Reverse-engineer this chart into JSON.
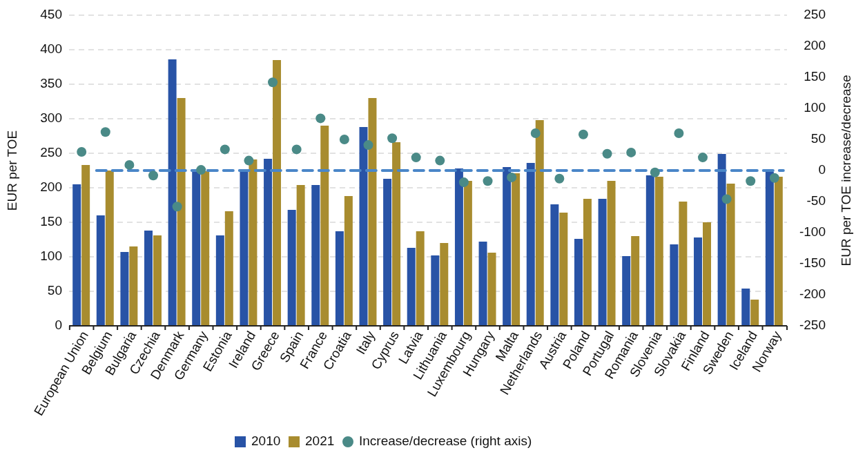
{
  "chart_data": {
    "type": "bar",
    "ylabel": "EUR per TOE",
    "y2label": "EUR per TOE increase/decrease",
    "categories": [
      "European Union",
      "Belgium",
      "Bulgaria",
      "Czechia",
      "Denmark",
      "Germany",
      "Estonia",
      "Ireland",
      "Greece",
      "Spain",
      "France",
      "Croatia",
      "Italy",
      "Cyprus",
      "Latvia",
      "Lithuania",
      "Luxembourg",
      "Hungary",
      "Malta",
      "Netherlands",
      "Austria",
      "Poland",
      "Portugal",
      "Romania",
      "Slovenia",
      "Slovakia",
      "Finland",
      "Sweden",
      "Iceland",
      "Norway"
    ],
    "series": [
      {
        "name": "2010",
        "color": "#2853a6",
        "values": [
          205,
          160,
          107,
          138,
          386,
          225,
          131,
          225,
          242,
          168,
          204,
          137,
          288,
          213,
          113,
          102,
          228,
          122,
          230,
          236,
          176,
          126,
          184,
          101,
          218,
          118,
          128,
          249,
          54,
          223
        ]
      },
      {
        "name": "2021",
        "color": "#a88c2f",
        "values": [
          233,
          225,
          115,
          131,
          330,
          224,
          166,
          241,
          385,
          204,
          290,
          188,
          330,
          266,
          137,
          120,
          210,
          106,
          221,
          298,
          164,
          184,
          210,
          130,
          216,
          180,
          150,
          206,
          38,
          216
        ]
      },
      {
        "name": "Increase/decrease (right axis)",
        "type": "scatter",
        "axis": "y2",
        "color": "#4a8a87",
        "values": [
          30,
          62,
          9,
          -8,
          -58,
          1,
          34,
          16,
          142,
          34,
          84,
          50,
          41,
          52,
          21,
          16,
          -19,
          -17,
          -11,
          60,
          -13,
          58,
          27,
          29,
          -3,
          60,
          21,
          -46,
          -17,
          -12
        ]
      }
    ],
    "ylim": [
      0,
      450
    ],
    "yticks": [
      0,
      50,
      100,
      150,
      200,
      250,
      300,
      350,
      400,
      450
    ],
    "y2lim": [
      -250,
      250
    ],
    "y2ticks": [
      -250,
      -200,
      -150,
      -100,
      -50,
      0,
      50,
      100,
      150,
      200,
      250
    ],
    "ref_lines": [
      {
        "axis": "y2",
        "value": 0,
        "color": "#4a86c8",
        "line_style": "dashed"
      }
    ],
    "grid": "y",
    "legend": "bottom",
    "marker": "circle"
  }
}
